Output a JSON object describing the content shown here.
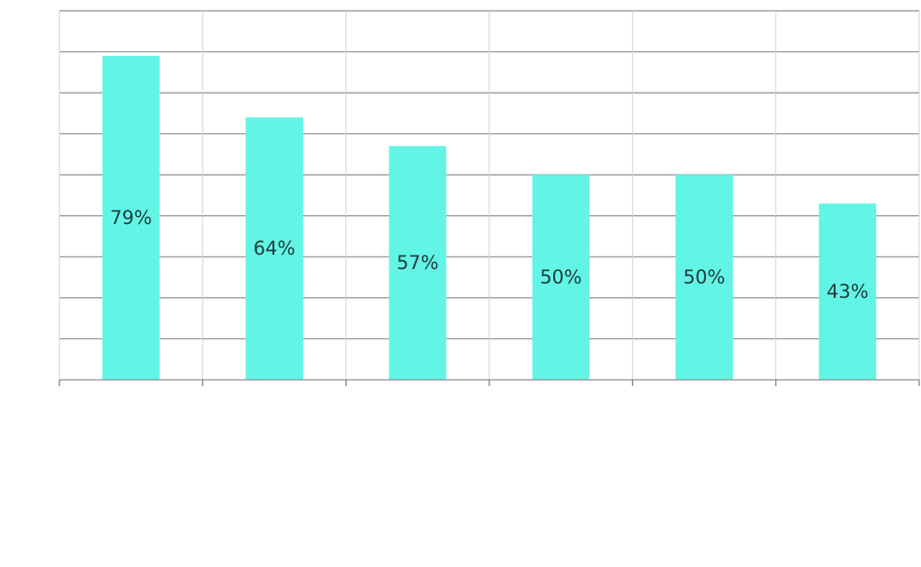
{
  "colors": {
    "bar": "#62f5e6",
    "label_text": "#1f3b3b",
    "grid_major": "#8c8c8c",
    "grid_minor": "#d2d2d2"
  },
  "chart_data": {
    "type": "bar",
    "title": "",
    "xlabel": "",
    "ylabel": "",
    "categories": [
      "",
      "",
      "",
      "",
      "",
      ""
    ],
    "values": [
      79,
      64,
      57,
      50,
      50,
      43
    ],
    "value_labels": [
      "79%",
      "64%",
      "57%",
      "50%",
      "50%",
      "43%"
    ],
    "ylim": [
      0,
      90
    ],
    "grid": true,
    "legend": "none"
  }
}
